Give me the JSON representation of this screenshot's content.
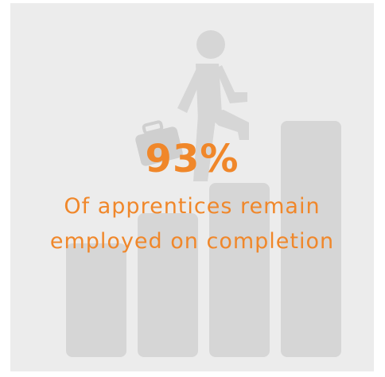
{
  "infographic": {
    "stat_value": "93%",
    "caption_lines": [
      "Of apprentices remain",
      "employed on completion"
    ],
    "accent_color": "#f0872a",
    "illustration_color": "#d6d6d6",
    "background_color": "#ececec",
    "icon": "person-climbing-steps-icon"
  }
}
